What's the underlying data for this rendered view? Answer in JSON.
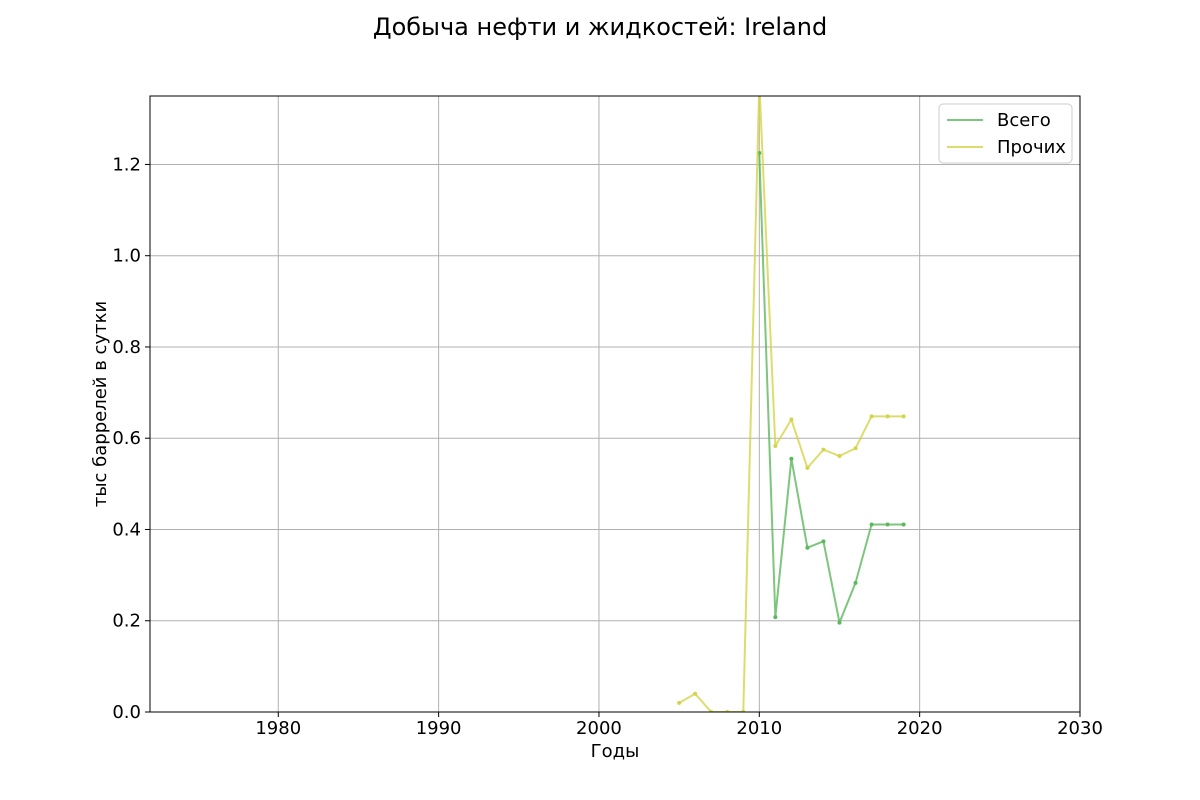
{
  "chart_data": {
    "type": "line",
    "title": "Добыча нефти и жидкостей: Ireland",
    "xlabel": "Годы",
    "ylabel": "тыс баррелей в сутки",
    "xlim": [
      1972,
      2030
    ],
    "ylim": [
      0,
      1.35
    ],
    "xticks": [
      1980,
      1990,
      2000,
      2010,
      2020,
      2030
    ],
    "xtick_labels": [
      "1980",
      "1990",
      "2000",
      "2010",
      "2020",
      "2030"
    ],
    "yticks": [
      0,
      0.2,
      0.4,
      0.6,
      0.8,
      1.0,
      1.2
    ],
    "ytick_labels": [
      "0.0",
      "0.2",
      "0.4",
      "0.6",
      "0.8",
      "1.0",
      "1.2"
    ],
    "grid": true,
    "legend_position": "top-right",
    "series": [
      {
        "name": "Всего",
        "color": "#5cb85c",
        "points": [
          [
            2010,
            1.225
          ],
          [
            2011,
            0.208
          ],
          [
            2012,
            0.555
          ],
          [
            2013,
            0.36
          ],
          [
            2014,
            0.374
          ],
          [
            2015,
            0.196
          ],
          [
            2016,
            0.283
          ],
          [
            2017,
            0.411
          ],
          [
            2018,
            0.411
          ],
          [
            2019,
            0.411
          ]
        ]
      },
      {
        "name": "Прочих",
        "color": "#d4d44a",
        "points": [
          [
            2005,
            0.02
          ],
          [
            2006,
            0.04
          ],
          [
            2007,
            0.0
          ],
          [
            2008,
            0.0
          ],
          [
            2009,
            0.0
          ],
          [
            2010,
            1.38
          ],
          [
            2011,
            0.583
          ],
          [
            2012,
            0.641
          ],
          [
            2013,
            0.535
          ],
          [
            2014,
            0.575
          ],
          [
            2015,
            0.561
          ],
          [
            2016,
            0.578
          ],
          [
            2017,
            0.648
          ],
          [
            2018,
            0.648
          ],
          [
            2019,
            0.648
          ]
        ]
      }
    ]
  }
}
